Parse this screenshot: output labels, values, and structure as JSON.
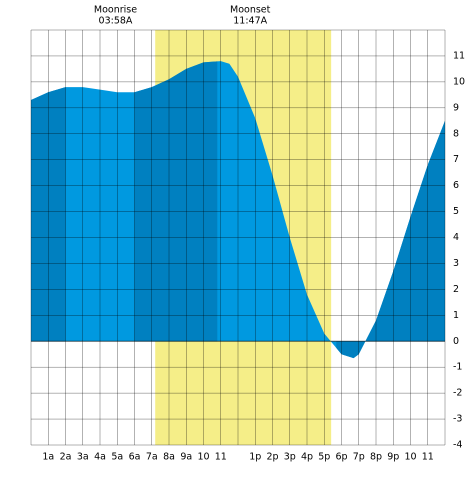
{
  "chart_data": {
    "type": "area",
    "annotations": [
      {
        "label": "Moonrise",
        "time": "03:58A",
        "x": 3.97
      },
      {
        "label": "Moonset",
        "time": "11:47A",
        "x": 11.78
      }
    ],
    "x": [
      0,
      1,
      2,
      3,
      4,
      5,
      6,
      7,
      8,
      9,
      10,
      11,
      11.5,
      12,
      13,
      14,
      15,
      16,
      17,
      18,
      18.7,
      19,
      20,
      21,
      22,
      23,
      24
    ],
    "values": [
      9.3,
      9.6,
      9.8,
      9.8,
      9.7,
      9.6,
      9.6,
      9.8,
      10.1,
      10.5,
      10.75,
      10.8,
      10.7,
      10.2,
      8.6,
      6.4,
      4.0,
      1.8,
      0.3,
      -0.5,
      -0.65,
      -0.5,
      0.8,
      2.7,
      4.8,
      6.8,
      8.5
    ],
    "color": "#0099e0",
    "dark_color": "#0080c0",
    "daylight_color": "#f5ee88",
    "daylight": [
      7.2,
      17.4
    ],
    "dark_bands": [
      [
        0,
        2
      ],
      [
        6,
        10.8
      ],
      [
        17.7,
        24
      ]
    ],
    "categories": [
      "1a",
      "2a",
      "3a",
      "4a",
      "5a",
      "6a",
      "7a",
      "8a",
      "9a",
      "10",
      "11",
      null,
      "1p",
      "2p",
      "3p",
      "4p",
      "5p",
      "6p",
      "7p",
      "8p",
      "9p",
      "10",
      "11"
    ],
    "xlim": [
      0,
      24
    ],
    "ylim": [
      -4,
      12
    ],
    "yticks": [
      -4,
      -3,
      -2,
      -1,
      0,
      1,
      2,
      3,
      4,
      5,
      6,
      7,
      8,
      9,
      10,
      11
    ],
    "grid": true
  }
}
